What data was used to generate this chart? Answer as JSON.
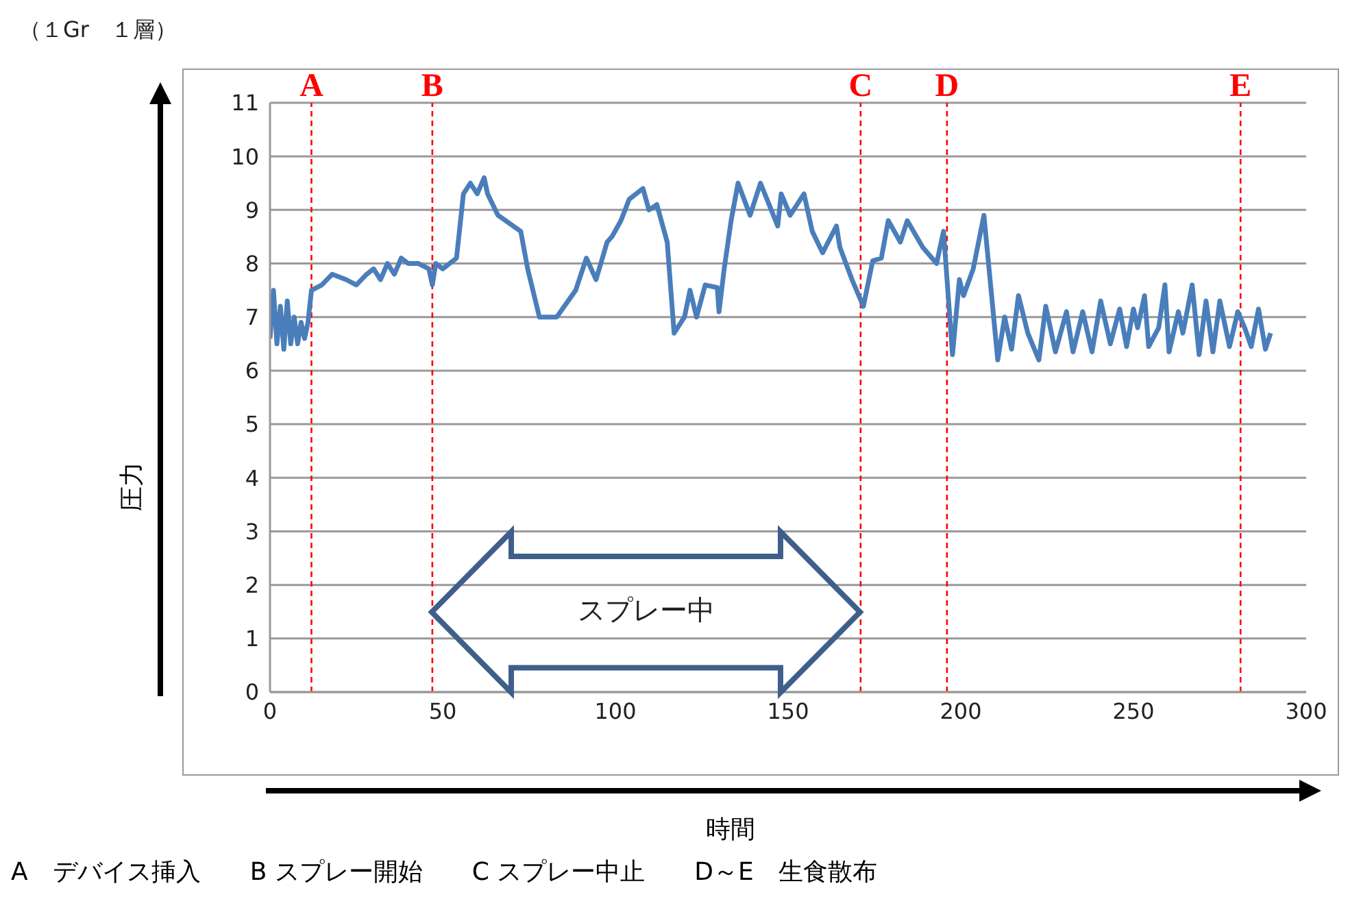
{
  "chart_data": {
    "type": "line",
    "title": "（１Gr　１層）",
    "xlabel": "時間",
    "ylabel": "圧力",
    "annotations": [
      "スプレー中",
      "A　デバイス挿入　　B スプレー開始　　C スプレー中止　　D～E　生食散布"
    ],
    "xlim": [
      0,
      300
    ],
    "xticks": [
      0,
      50,
      100,
      150,
      200,
      250,
      300
    ],
    "ylim": [
      0,
      11
    ],
    "yticks": [
      0,
      1,
      2,
      3,
      4,
      5,
      6,
      7,
      8,
      9,
      10,
      11
    ],
    "grid": "y",
    "ref_lines": [
      {
        "axis": "x",
        "value": 12,
        "label": "A",
        "color": "#ff0000",
        "line_style": "dashed"
      },
      {
        "axis": "x",
        "value": 47,
        "label": "B",
        "color": "#ff0000",
        "line_style": "dashed"
      },
      {
        "axis": "x",
        "value": 171,
        "label": "C",
        "color": "#ff0000",
        "line_style": "dashed"
      },
      {
        "axis": "x",
        "value": 196,
        "label": "D",
        "color": "#ff0000",
        "line_style": "dashed"
      },
      {
        "axis": "x",
        "value": 281,
        "label": "E",
        "color": "#ff0000",
        "line_style": "dashed"
      }
    ],
    "series": [
      {
        "color": "#4a7ebb",
        "x": [
          0,
          1,
          2,
          3,
          4,
          5,
          6,
          7,
          8,
          9,
          10,
          11,
          12,
          15,
          18,
          22,
          25,
          28,
          30,
          32,
          34,
          36,
          38,
          40,
          43,
          46,
          47,
          48,
          50,
          52,
          54,
          56,
          58,
          60,
          62,
          63,
          66,
          72.6,
          74.6,
          78,
          83,
          88.5,
          91.6,
          94.4,
          97.6,
          99,
          101.6,
          104,
          108,
          109.7,
          112,
          115,
          117,
          120,
          121.6,
          123.5,
          126,
          129.5,
          130,
          131.5,
          133.5,
          135.5,
          139,
          142,
          147,
          148,
          150.6,
          154.6,
          157,
          160,
          164,
          165,
          168.5,
          171.8,
          174.5,
          177,
          179,
          182.5,
          184.5,
          189,
          193,
          195,
          197.6,
          199.6,
          200.8,
          203.6,
          206.7,
          210.7,
          212.7,
          214.7,
          216.7,
          219.4,
          222.6,
          224.6,
          227.4,
          230.6,
          232.5,
          235.3,
          238,
          240.5,
          243.3,
          246,
          248,
          250,
          251.2,
          253.2,
          254.4,
          257.3,
          259.1,
          260.3,
          263,
          264.3,
          267,
          269,
          271,
          273,
          275,
          277.8,
          280.2,
          282.2,
          284.1,
          286.2,
          288.2,
          289.7
        ],
        "values": [
          6.6,
          7.5,
          6.5,
          7.2,
          6.4,
          7.3,
          6.5,
          7.0,
          6.5,
          6.9,
          6.6,
          6.9,
          7.5,
          7.6,
          7.8,
          7.7,
          7.6,
          7.8,
          7.9,
          7.7,
          8.0,
          7.8,
          8.1,
          8.0,
          8.0,
          7.9,
          7.6,
          8.0,
          7.9,
          8.0,
          8.1,
          9.3,
          9.5,
          9.3,
          9.6,
          9.3,
          8.9,
          8.6,
          7.9,
          7.0,
          7.0,
          7.5,
          8.1,
          7.7,
          8.4,
          8.5,
          8.8,
          9.2,
          9.4,
          9.0,
          9.1,
          8.4,
          6.7,
          7.0,
          7.5,
          7.0,
          7.6,
          7.55,
          7.1,
          7.9,
          8.8,
          9.5,
          8.9,
          9.5,
          8.7,
          9.3,
          8.9,
          9.3,
          8.6,
          8.2,
          8.7,
          8.3,
          7.7,
          7.2,
          8.05,
          8.1,
          8.8,
          8.4,
          8.8,
          8.3,
          8.0,
          8.6,
          6.3,
          7.7,
          7.4,
          7.9,
          8.9,
          6.2,
          7.0,
          6.4,
          7.4,
          6.7,
          6.2,
          7.2,
          6.35,
          7.1,
          6.35,
          7.1,
          6.35,
          7.3,
          6.5,
          7.15,
          6.45,
          7.15,
          6.8,
          7.4,
          6.45,
          6.8,
          7.6,
          6.35,
          7.1,
          6.7,
          7.6,
          6.3,
          7.3,
          6.35,
          7.3,
          6.45,
          7.1,
          6.8,
          6.45,
          7.15,
          6.4,
          6.7
        ]
      }
    ]
  }
}
